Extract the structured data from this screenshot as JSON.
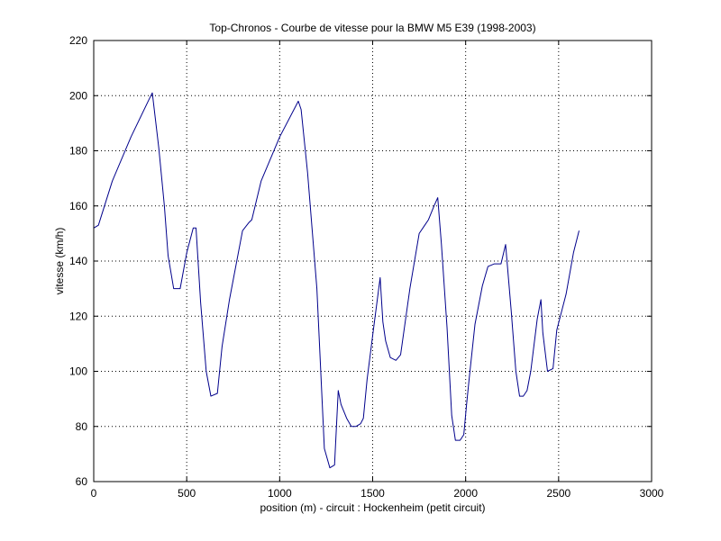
{
  "chart_data": {
    "type": "line",
    "title": "Top-Chronos - Courbe de vitesse pour la BMW M5 E39 (1998-2003)",
    "xlabel": "position (m) - circuit : Hockenheim (petit circuit)",
    "ylabel": "vitesse (km/h)",
    "xlim": [
      0,
      3000
    ],
    "ylim": [
      60,
      220
    ],
    "xticks": [
      0,
      500,
      1000,
      1500,
      2000,
      2500,
      3000
    ],
    "yticks": [
      60,
      80,
      100,
      120,
      140,
      160,
      180,
      200,
      220
    ],
    "xtick_labels": [
      "0",
      "500",
      "1000",
      "1500",
      "2000",
      "2500",
      "3000"
    ],
    "ytick_labels": [
      "60",
      "80",
      "100",
      "120",
      "140",
      "160",
      "180",
      "200",
      "220"
    ],
    "grid": true,
    "series": [
      {
        "color": "#00008b",
        "x": [
          0,
          25,
          100,
          200,
          300,
          315,
          350,
          380,
          400,
          430,
          465,
          500,
          535,
          550,
          575,
          605,
          630,
          665,
          690,
          730,
          800,
          835,
          850,
          900,
          1000,
          1100,
          1115,
          1150,
          1200,
          1240,
          1270,
          1295,
          1315,
          1330,
          1360,
          1385,
          1410,
          1435,
          1450,
          1470,
          1500,
          1540,
          1555,
          1570,
          1595,
          1625,
          1650,
          1700,
          1750,
          1780,
          1800,
          1830,
          1850,
          1870,
          1900,
          1925,
          1945,
          1970,
          1990,
          2005,
          2020,
          2050,
          2090,
          2120,
          2155,
          2190,
          2215,
          2245,
          2270,
          2290,
          2310,
          2330,
          2350,
          2385,
          2405,
          2415,
          2440,
          2470,
          2490,
          2540,
          2580,
          2610
        ],
        "y": [
          152,
          153,
          169,
          185,
          199,
          201,
          181,
          160,
          142,
          130,
          130,
          143,
          152,
          152,
          125,
          100,
          91,
          92,
          109,
          126,
          151,
          154,
          155,
          169,
          185,
          198,
          195,
          172,
          130,
          72,
          65,
          66,
          93,
          88,
          83,
          80,
          80,
          81,
          83,
          97,
          113,
          134,
          118,
          111,
          105,
          104,
          106,
          130,
          150,
          153,
          155,
          160,
          163,
          146,
          116,
          84,
          75,
          75,
          77,
          88,
          98,
          117,
          131,
          138,
          139,
          139,
          146,
          122,
          100,
          91,
          91,
          93,
          100,
          119,
          126,
          114,
          100,
          101,
          115,
          128,
          143,
          151
        ]
      }
    ]
  }
}
